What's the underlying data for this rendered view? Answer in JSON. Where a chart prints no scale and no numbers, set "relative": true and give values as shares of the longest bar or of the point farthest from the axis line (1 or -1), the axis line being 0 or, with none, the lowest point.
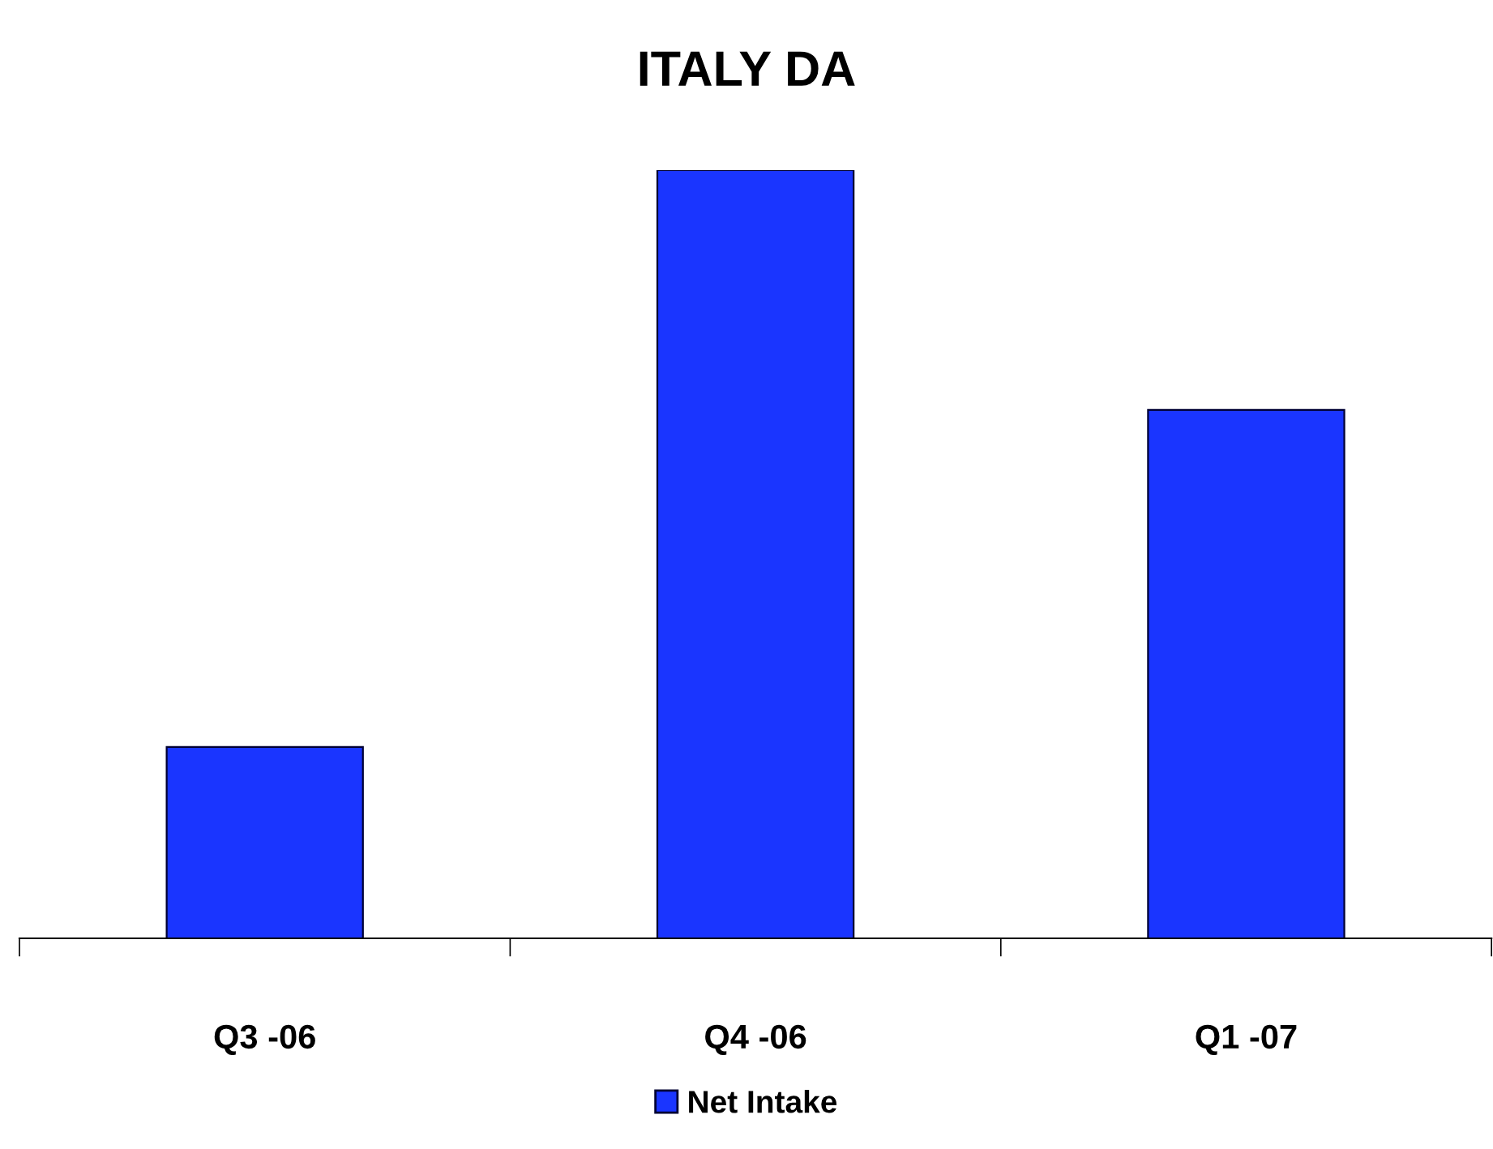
{
  "chart_data": {
    "type": "bar",
    "title": "ITALY DA",
    "categories": [
      "Q3 -06",
      "Q4 -06",
      "Q1 -07"
    ],
    "relative": true,
    "series": [
      {
        "name": "Net Intake",
        "color": "#1a35ff",
        "values": [
          0.249,
          1,
          0.688
        ]
      }
    ],
    "legend": "bottom",
    "grid": false
  }
}
